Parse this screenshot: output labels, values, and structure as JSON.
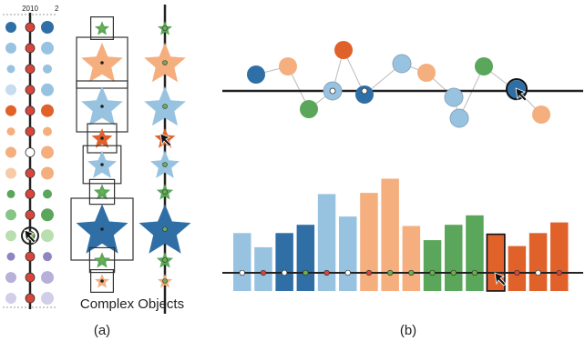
{
  "panel_a": {
    "year_label": "2010",
    "caption": "Complex Objects",
    "label": "(a)",
    "dots": [
      {
        "left": "#2f6fa6",
        "right": "#2f6fa6",
        "mid": "red"
      },
      {
        "left": "#98c3e0",
        "right": "#98c3e0",
        "mid": "red"
      },
      {
        "left": "#98c3e0",
        "right": "#98c3e0",
        "mid": "red"
      },
      {
        "left": "#c7dcee",
        "right": "#98c3e0",
        "mid": "red"
      },
      {
        "left": "#e0622a",
        "right": "#e0622a",
        "mid": "red"
      },
      {
        "left": "#f5ae7e",
        "right": "#f5ae7e",
        "mid": "red"
      },
      {
        "left": "#f5ae7e",
        "right": "#f5ae7e",
        "mid": "white"
      },
      {
        "left": "#f8cba8",
        "right": "#f5ae7e",
        "mid": "red"
      },
      {
        "left": "#5aa65a",
        "right": "#5aa65a",
        "mid": "red"
      },
      {
        "left": "#86c586",
        "right": "#5aa65a",
        "mid": "red"
      },
      {
        "left": "#b9dfb0",
        "right": "#b9dfb0",
        "mid": "green"
      },
      {
        "left": "#8f85c0",
        "right": "#8f85c0",
        "mid": "red"
      },
      {
        "left": "#b7b1d9",
        "right": "#b7b1d9",
        "mid": "red"
      },
      {
        "left": "#d1cee8",
        "right": "#d1cee8",
        "mid": "red"
      }
    ],
    "stars": [
      {
        "color": "#5aa65a",
        "size": 0.35,
        "center": "green",
        "boxed": true
      },
      {
        "color": "#f5ae7e",
        "size": 1.0,
        "center": "dark",
        "boxed": true
      },
      {
        "color": "#98c3e0",
        "size": 1.0,
        "center": "dark",
        "boxed": true
      },
      {
        "color": "#e0622a",
        "size": 0.5,
        "center": "dark",
        "boxed": true
      },
      {
        "color": "#98c3e0",
        "size": 0.7,
        "center": "dark",
        "boxed": true
      },
      {
        "color": "#5aa65a",
        "size": 0.4,
        "center": "green",
        "boxed": true
      },
      {
        "color": "#2f6fa6",
        "size": 1.25,
        "center": "dark",
        "boxed": true
      },
      {
        "color": "#5aa65a",
        "size": 0.4,
        "center": "green",
        "boxed": true
      },
      {
        "color": "#f5ae7e",
        "size": 0.35,
        "center": "dark",
        "boxed": true
      }
    ]
  },
  "panel_b": {
    "label": "(b)",
    "nodes": [
      {
        "color": "#2f6fa6",
        "mark": "none"
      },
      {
        "color": "#f5ae7e",
        "mark": "none"
      },
      {
        "color": "#5aa65a",
        "mark": "none"
      },
      {
        "color": "#98c3e0",
        "mark": "white"
      },
      {
        "color": "#e0622a",
        "mark": "none"
      },
      {
        "color": "#2f6fa6",
        "mark": "white"
      },
      {
        "color": "#98c3e0",
        "mark": "none"
      },
      {
        "color": "#f5ae7e",
        "mark": "none"
      },
      {
        "color": "#98c3e0",
        "mark": "none"
      },
      {
        "color": "#98c3e0",
        "mark": "none"
      },
      {
        "color": "#5aa65a",
        "mark": "none"
      },
      {
        "color": "#98c3e0",
        "mark": "none"
      },
      {
        "color": "#2f6fa6",
        "mark": "selected"
      },
      {
        "color": "#f5ae7e",
        "mark": "none"
      }
    ],
    "bars": [
      {
        "value": 0.49,
        "color": "#98c3e0",
        "dot": "white"
      },
      {
        "value": 0.37,
        "color": "#98c3e0",
        "dot": "red"
      },
      {
        "value": 0.49,
        "color": "#2f6fa6",
        "dot": "white"
      },
      {
        "value": 0.56,
        "color": "#2f6fa6",
        "dot": "green"
      },
      {
        "value": 0.82,
        "color": "#98c3e0",
        "dot": "red"
      },
      {
        "value": 0.63,
        "color": "#98c3e0",
        "dot": "white"
      },
      {
        "value": 0.83,
        "color": "#f5ae7e",
        "dot": "red"
      },
      {
        "value": 0.95,
        "color": "#f5ae7e",
        "dot": "green"
      },
      {
        "value": 0.55,
        "color": "#f5ae7e",
        "dot": "green"
      },
      {
        "value": 0.43,
        "color": "#5aa65a",
        "dot": "green"
      },
      {
        "value": 0.56,
        "color": "#5aa65a",
        "dot": "green"
      },
      {
        "value": 0.64,
        "color": "#5aa65a",
        "dot": "green"
      },
      {
        "value": 0.48,
        "color": "#e0622a",
        "dot": "selected"
      },
      {
        "value": 0.38,
        "color": "#e0622a",
        "dot": "red"
      },
      {
        "value": 0.49,
        "color": "#e0622a",
        "dot": "white"
      },
      {
        "value": 0.58,
        "color": "#e0622a",
        "dot": "red"
      }
    ]
  },
  "colors": {
    "axis": "#222222",
    "red_dot": "#d9453b",
    "green_dot": "#6ab04c",
    "dark_center": "#222222",
    "box": "#333333",
    "edge": "#bbbbbb"
  }
}
